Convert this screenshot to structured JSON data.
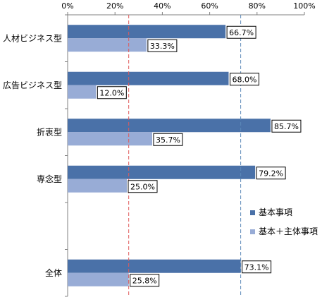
{
  "chart_data": {
    "type": "bar",
    "orientation": "horizontal",
    "categories": [
      "人材ビジネス型",
      "広告ビジネス型",
      "折衷型",
      "専念型",
      "",
      "全体"
    ],
    "series": [
      {
        "name": "基本事項",
        "color": "#4a71a8",
        "values": [
          66.7,
          68.0,
          85.7,
          79.2,
          null,
          73.1
        ],
        "labels": [
          "66.7%",
          "68.0%",
          "85.7%",
          "79.2%",
          "",
          "73.1%"
        ]
      },
      {
        "name": "基本＋主体事項",
        "color": "#98acd6",
        "values": [
          33.3,
          12.0,
          35.7,
          25.0,
          null,
          25.8
        ],
        "labels": [
          "33.3%",
          "12.0%",
          "35.7%",
          "25.0%",
          "",
          "25.8%"
        ]
      }
    ],
    "xlim": [
      0,
      100
    ],
    "x_ticks": [
      "0%",
      "20%",
      "40%",
      "60%",
      "80%",
      "100%"
    ],
    "axis_position": "top",
    "grid": false,
    "reference_lines": [
      {
        "value": 25.8,
        "color": "#e05a5a",
        "style": "dashed"
      },
      {
        "value": 73.1,
        "color": "#5b88b8",
        "style": "dashed"
      }
    ],
    "legend": {
      "position": "right",
      "entries": [
        "基本事項",
        "基本＋主体事項"
      ]
    }
  }
}
